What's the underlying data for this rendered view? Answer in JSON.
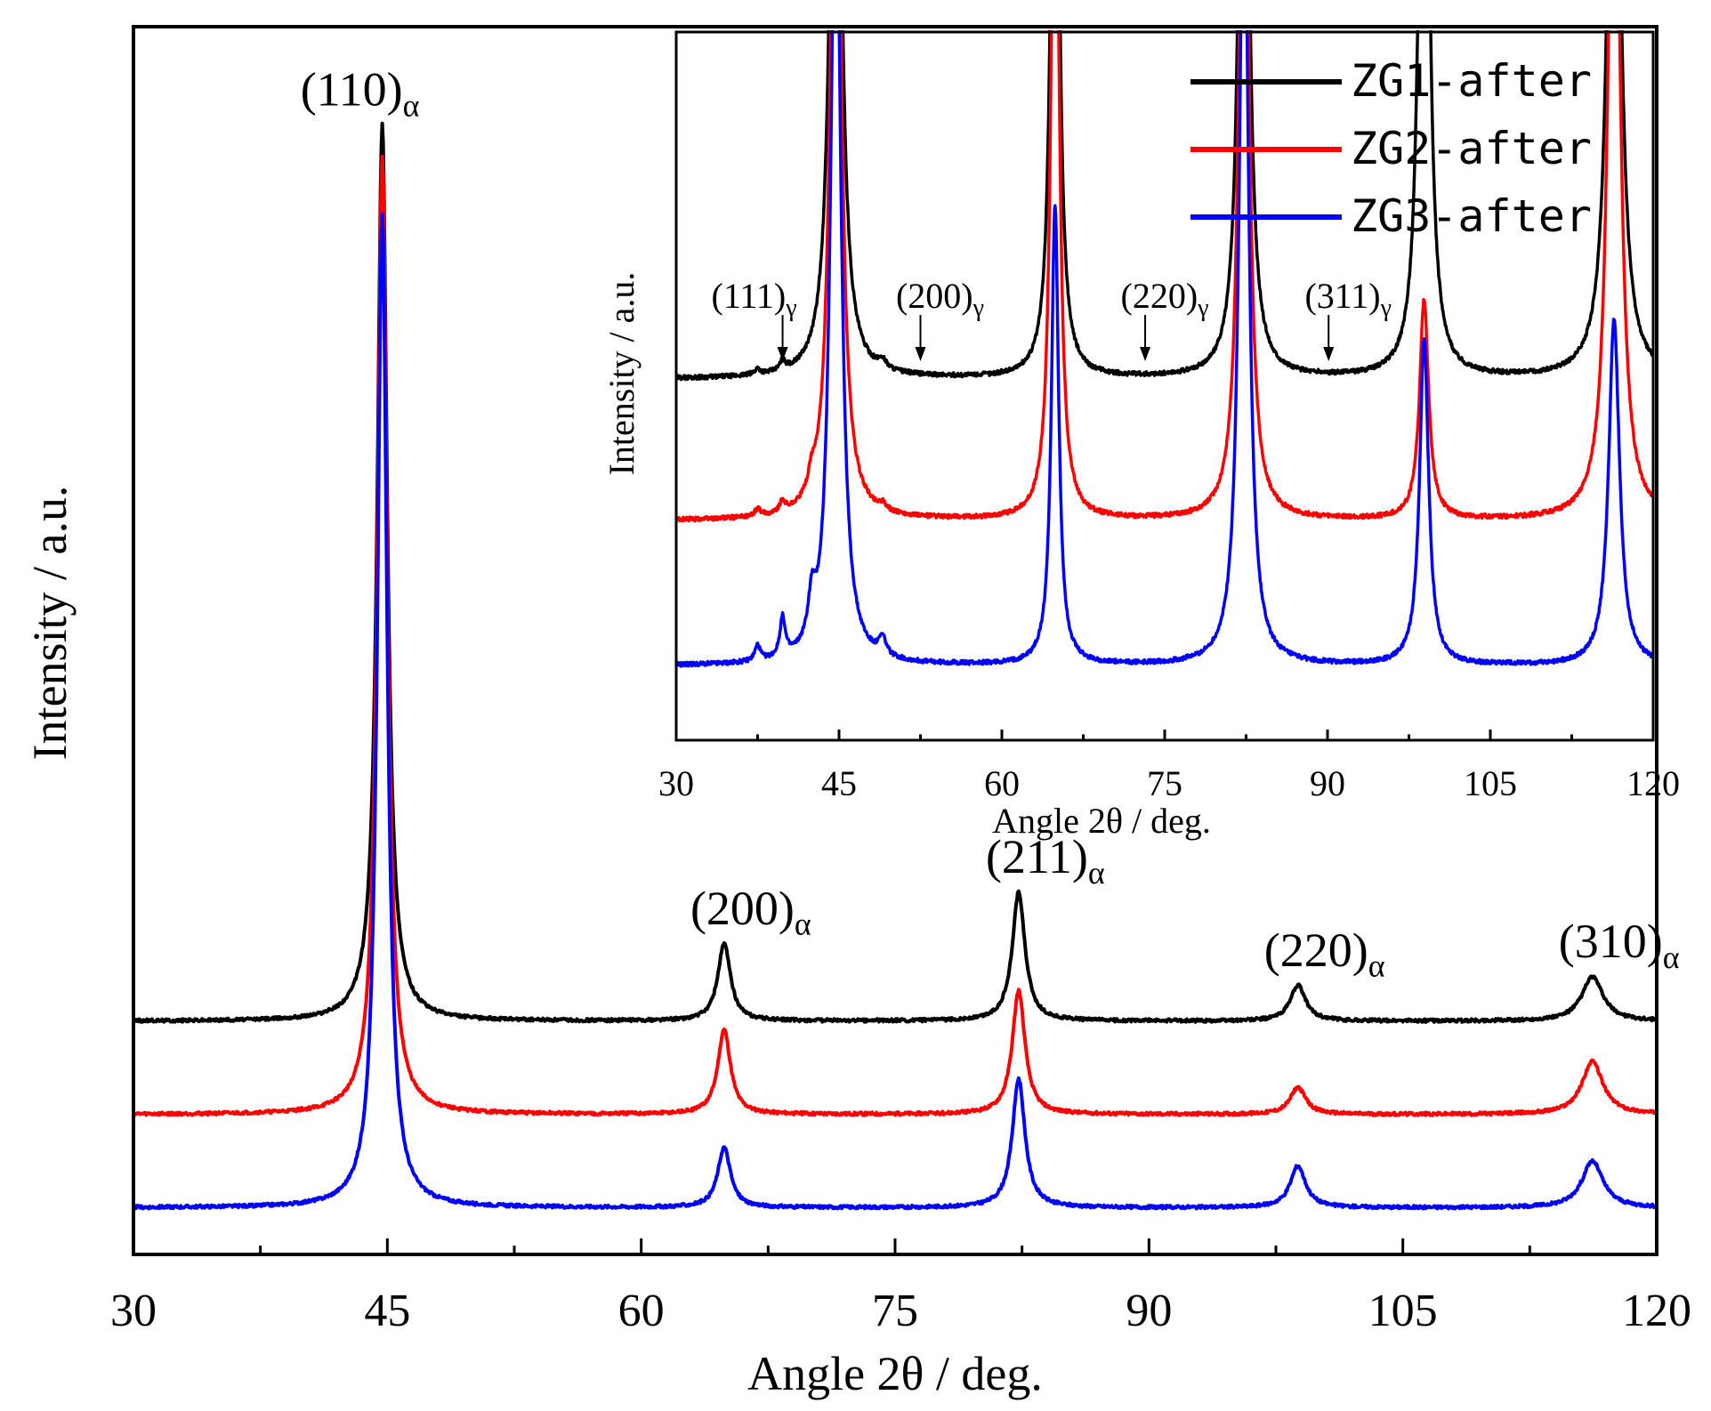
{
  "chart_data": [
    {
      "type": "line",
      "id": "main",
      "xlabel": "Angle 2θ / deg.",
      "ylabel": "Intensity / a.u.",
      "xlim": [
        30,
        120
      ],
      "xticks": [
        30,
        45,
        60,
        75,
        90,
        105,
        120
      ],
      "xtick_labels": [
        "30",
        "45",
        "60",
        "75",
        "90",
        "105",
        "120"
      ],
      "ylim": [
        0,
        100
      ],
      "series": [
        {
          "name": "ZG1-after",
          "color": "#000000",
          "baseline": 19,
          "peaks": [
            {
              "x": 44.7,
              "h": 73,
              "w": 0.35
            },
            {
              "x": 64.9,
              "h": 6.3,
              "w": 0.45
            },
            {
              "x": 82.3,
              "h": 10.5,
              "w": 0.45
            },
            {
              "x": 98.8,
              "h": 2.9,
              "w": 0.55
            },
            {
              "x": 116.2,
              "h": 3.6,
              "w": 0.75
            }
          ]
        },
        {
          "name": "ZG2-after",
          "color": "#ff0000",
          "baseline": 11.4,
          "peaks": [
            {
              "x": 44.7,
              "h": 78,
              "w": 0.35
            },
            {
              "x": 64.9,
              "h": 6.9,
              "w": 0.45
            },
            {
              "x": 82.3,
              "h": 10.1,
              "w": 0.45
            },
            {
              "x": 98.8,
              "h": 2.2,
              "w": 0.55
            },
            {
              "x": 116.2,
              "h": 4.3,
              "w": 0.75
            }
          ]
        },
        {
          "name": "ZG3-after",
          "color": "#0000ff",
          "baseline": 3.8,
          "peaks": [
            {
              "x": 44.7,
              "h": 81,
              "w": 0.35
            },
            {
              "x": 64.9,
              "h": 4.9,
              "w": 0.45
            },
            {
              "x": 82.3,
              "h": 10.5,
              "w": 0.45
            },
            {
              "x": 98.8,
              "h": 3.4,
              "w": 0.55
            },
            {
              "x": 116.2,
              "h": 3.8,
              "w": 0.75
            }
          ]
        }
      ],
      "annotations": [
        {
          "base": "(110)",
          "sub": "α",
          "x": 44.7
        },
        {
          "base": "(200)",
          "sub": "α",
          "x": 64.9
        },
        {
          "base": "(211)",
          "sub": "α",
          "x": 82.3
        },
        {
          "base": "(220)",
          "sub": "α",
          "x": 98.8
        },
        {
          "base": "(310)",
          "sub": "α",
          "x": 116.2
        }
      ]
    },
    {
      "type": "line",
      "id": "inset",
      "xlabel": "Angle 2θ / deg.",
      "ylabel": "Intensity / a.u.",
      "xlim": [
        30,
        120
      ],
      "xticks": [
        30,
        45,
        60,
        75,
        90,
        105,
        120
      ],
      "xtick_labels": [
        "30",
        "45",
        "60",
        "75",
        "90",
        "105",
        "120"
      ],
      "ylim": [
        0,
        100
      ],
      "legend": [
        {
          "name": "ZG1-after",
          "color": "#000000"
        },
        {
          "name": "ZG2-after",
          "color": "#ff0000"
        },
        {
          "name": "ZG3-after",
          "color": "#0000ff"
        }
      ],
      "series": [
        {
          "name": "ZG1-after",
          "color": "#000000",
          "baseline": 51,
          "peaks": [
            {
              "x": 44.7,
              "h": 120,
              "w": 0.55
            },
            {
              "x": 64.9,
              "h": 120,
              "w": 0.4
            },
            {
              "x": 82.3,
              "h": 120,
              "w": 0.5
            },
            {
              "x": 98.9,
              "h": 120,
              "w": 0.5
            },
            {
              "x": 116.4,
              "h": 120,
              "w": 0.6
            },
            {
              "x": 37.5,
              "h": 0.8,
              "w": 0.3
            },
            {
              "x": 39.8,
              "h": 1.3,
              "w": 0.3
            },
            {
              "x": 49.0,
              "h": 1.2,
              "w": 0.4
            }
          ]
        },
        {
          "name": "ZG2-after",
          "color": "#ff0000",
          "baseline": 31,
          "peaks": [
            {
              "x": 44.7,
              "h": 120,
              "w": 0.55
            },
            {
              "x": 64.9,
              "h": 120,
              "w": 0.4
            },
            {
              "x": 82.3,
              "h": 120,
              "w": 0.5
            },
            {
              "x": 98.9,
              "h": 31,
              "w": 0.5
            },
            {
              "x": 116.4,
              "h": 120,
              "w": 0.6
            },
            {
              "x": 37.5,
              "h": 1.0,
              "w": 0.3
            },
            {
              "x": 39.8,
              "h": 1.5,
              "w": 0.3
            },
            {
              "x": 42.5,
              "h": 2.5,
              "w": 0.4
            },
            {
              "x": 49.0,
              "h": 0.8,
              "w": 0.4
            }
          ]
        },
        {
          "name": "ZG3-after",
          "color": "#0000ff",
          "baseline": 10.5,
          "peaks": [
            {
              "x": 44.7,
              "h": 120,
              "w": 0.55
            },
            {
              "x": 64.9,
              "h": 65,
              "w": 0.4
            },
            {
              "x": 82.3,
              "h": 120,
              "w": 0.5
            },
            {
              "x": 98.9,
              "h": 46,
              "w": 0.5
            },
            {
              "x": 116.4,
              "h": 49,
              "w": 0.6
            },
            {
              "x": 37.5,
              "h": 2.2,
              "w": 0.3
            },
            {
              "x": 39.8,
              "h": 5.5,
              "w": 0.3
            },
            {
              "x": 42.5,
              "h": 6.0,
              "w": 0.4
            },
            {
              "x": 49.0,
              "h": 2.5,
              "w": 0.4
            }
          ]
        }
      ],
      "annotations": [
        {
          "base": "(111)",
          "sub": "γ",
          "x": 39.8
        },
        {
          "base": "(200)",
          "sub": "γ",
          "x": 52.5
        },
        {
          "base": "(220)",
          "sub": "γ",
          "x": 73.2
        },
        {
          "base": "(311)",
          "sub": "γ",
          "x": 90.1
        }
      ]
    }
  ]
}
